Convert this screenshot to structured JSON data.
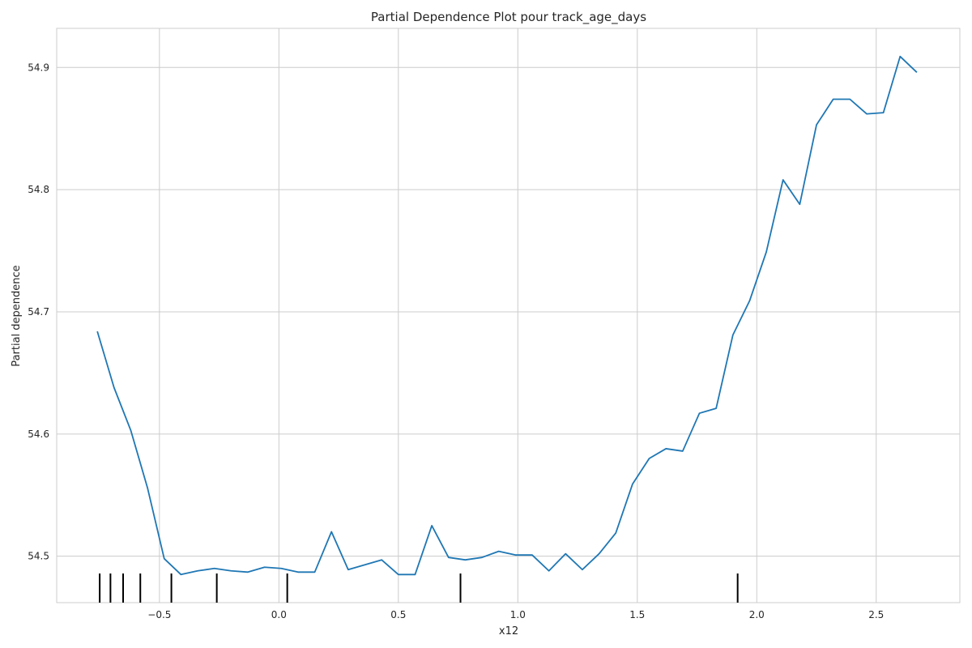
{
  "chart_data": {
    "type": "line",
    "title": "Partial Dependence Plot pour track_age_days",
    "xlabel": "x12",
    "ylabel": "Partial dependence",
    "xlim": [
      -0.93,
      2.85
    ],
    "ylim": [
      54.462,
      54.932
    ],
    "xticks": [
      -0.5,
      0.0,
      0.5,
      1.0,
      1.5,
      2.0,
      2.5
    ],
    "xtick_labels": [
      "−0.5",
      "0.0",
      "0.5",
      "1.0",
      "1.5",
      "2.0",
      "2.5"
    ],
    "yticks": [
      54.5,
      54.6,
      54.7,
      54.8,
      54.9
    ],
    "ytick_labels": [
      "54.5",
      "54.6",
      "54.7",
      "54.8",
      "54.9"
    ],
    "grid": true,
    "colors": {
      "line": "#1f77b4",
      "rug": "#000000",
      "grid": "#cccccc",
      "spine": "#cccccc"
    },
    "series": [
      {
        "x": [
          -0.76,
          -0.69,
          -0.62,
          -0.55,
          -0.48,
          -0.41,
          -0.34,
          -0.27,
          -0.2,
          -0.13,
          -0.06,
          0.01,
          0.08,
          0.15,
          0.22,
          0.29,
          0.36,
          0.43,
          0.5,
          0.57,
          0.64,
          0.71,
          0.78,
          0.85,
          0.92,
          0.99,
          1.06,
          1.13,
          1.2,
          1.27,
          1.34,
          1.41,
          1.48,
          1.55,
          1.62,
          1.69,
          1.76,
          1.83,
          1.9,
          1.97,
          2.04,
          2.11,
          2.18,
          2.25,
          2.32,
          2.39,
          2.46,
          2.53,
          2.6,
          2.67
        ],
        "y": [
          54.684,
          54.638,
          54.603,
          54.556,
          54.498,
          54.485,
          54.488,
          54.49,
          54.488,
          54.487,
          54.491,
          54.49,
          54.487,
          54.487,
          54.52,
          54.489,
          54.493,
          54.497,
          54.485,
          54.485,
          54.525,
          54.499,
          54.497,
          54.499,
          54.504,
          54.501,
          54.501,
          54.488,
          54.502,
          54.489,
          54.502,
          54.519,
          54.559,
          54.58,
          54.588,
          54.586,
          54.617,
          54.621,
          54.681,
          54.709,
          54.749,
          54.808,
          54.788,
          54.853,
          54.874,
          54.874,
          54.862,
          54.863,
          54.909,
          54.896
        ]
      }
    ],
    "rug": [
      -0.75,
      -0.705,
      -0.652,
      -0.58,
      -0.45,
      -0.26,
      0.035,
      0.76,
      1.92
    ]
  }
}
